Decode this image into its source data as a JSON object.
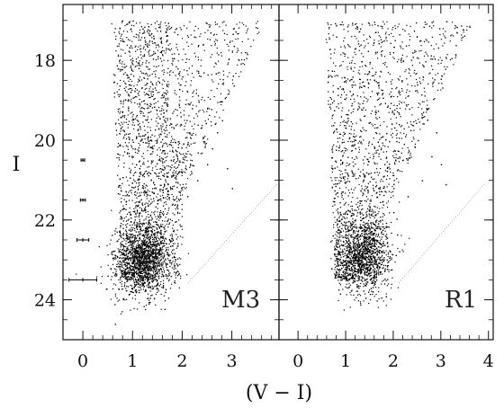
{
  "chart_data": {
    "type": "scatter",
    "xlabel": "(V − I)",
    "ylabel": "I",
    "y_inverted": true,
    "panels": [
      {
        "name": "M3",
        "xlim": [
          -0.4,
          3.95
        ],
        "xticks": [
          0,
          1,
          2,
          3
        ],
        "ylim": [
          25.0,
          16.6
        ],
        "yticks": [
          18,
          20,
          22,
          24
        ],
        "error_bars": [
          {
            "x": 0.0,
            "y": 20.5,
            "xerr": 0.03,
            "yerr": 0.05
          },
          {
            "x": 0.0,
            "y": 21.5,
            "xerr": 0.05,
            "yerr": 0.06
          },
          {
            "x": 0.0,
            "y": 22.5,
            "xerr": 0.12,
            "yerr": 0.1
          },
          {
            "x": 0.0,
            "y": 23.5,
            "xerr": 0.28,
            "yerr": 0.15
          }
        ],
        "dense_core": {
          "color": 1.2,
          "mag": 23.0
        },
        "approx_points": [
          [
            1.0,
            23.0
          ],
          [
            1.1,
            23.2
          ],
          [
            1.2,
            22.8
          ],
          [
            1.3,
            23.1
          ],
          [
            0.9,
            23.4
          ],
          [
            1.4,
            22.6
          ],
          [
            1.5,
            22.3
          ],
          [
            1.7,
            22.0
          ],
          [
            1.9,
            21.7
          ],
          [
            2.1,
            21.4
          ],
          [
            2.3,
            21.0
          ],
          [
            2.5,
            20.6
          ],
          [
            2.6,
            20.2
          ],
          [
            2.7,
            19.8
          ],
          [
            2.8,
            19.5
          ],
          [
            2.5,
            19.2
          ],
          [
            2.2,
            18.8
          ],
          [
            2.0,
            18.4
          ],
          [
            1.8,
            18.0
          ],
          [
            1.5,
            17.6
          ],
          [
            1.2,
            17.2
          ],
          [
            1.0,
            17.0
          ],
          [
            0.8,
            17.5
          ],
          [
            0.7,
            18.2
          ],
          [
            0.9,
            19.0
          ],
          [
            1.1,
            19.6
          ],
          [
            1.4,
            20.2
          ],
          [
            1.8,
            20.8
          ],
          [
            2.9,
            20.7
          ],
          [
            3.0,
            21.2
          ]
        ]
      },
      {
        "name": "R1",
        "xlim": [
          -0.4,
          4.1
        ],
        "xticks": [
          0,
          1,
          2,
          3,
          4
        ],
        "ylim": [
          25.0,
          16.6
        ],
        "yticks": [
          18,
          20,
          22,
          24
        ],
        "dense_core": {
          "color": 1.4,
          "mag": 22.9
        },
        "approx_points": [
          [
            1.2,
            23.0
          ],
          [
            1.4,
            22.7
          ],
          [
            1.6,
            22.5
          ],
          [
            1.3,
            23.3
          ],
          [
            1.0,
            23.5
          ],
          [
            1.8,
            22.2
          ],
          [
            2.0,
            21.8
          ],
          [
            2.3,
            21.4
          ],
          [
            2.6,
            21.0
          ],
          [
            2.8,
            20.4
          ],
          [
            2.9,
            19.8
          ],
          [
            2.7,
            19.2
          ],
          [
            2.5,
            18.6
          ],
          [
            2.2,
            18.0
          ],
          [
            1.8,
            17.5
          ],
          [
            1.3,
            17.2
          ],
          [
            0.8,
            17.4
          ],
          [
            0.7,
            18.4
          ],
          [
            0.9,
            19.4
          ],
          [
            1.2,
            20.2
          ],
          [
            1.6,
            20.8
          ],
          [
            2.0,
            21.2
          ],
          [
            3.0,
            20.6
          ],
          [
            3.1,
            21.1
          ],
          [
            2.4,
            17.8
          ]
        ]
      }
    ]
  }
}
